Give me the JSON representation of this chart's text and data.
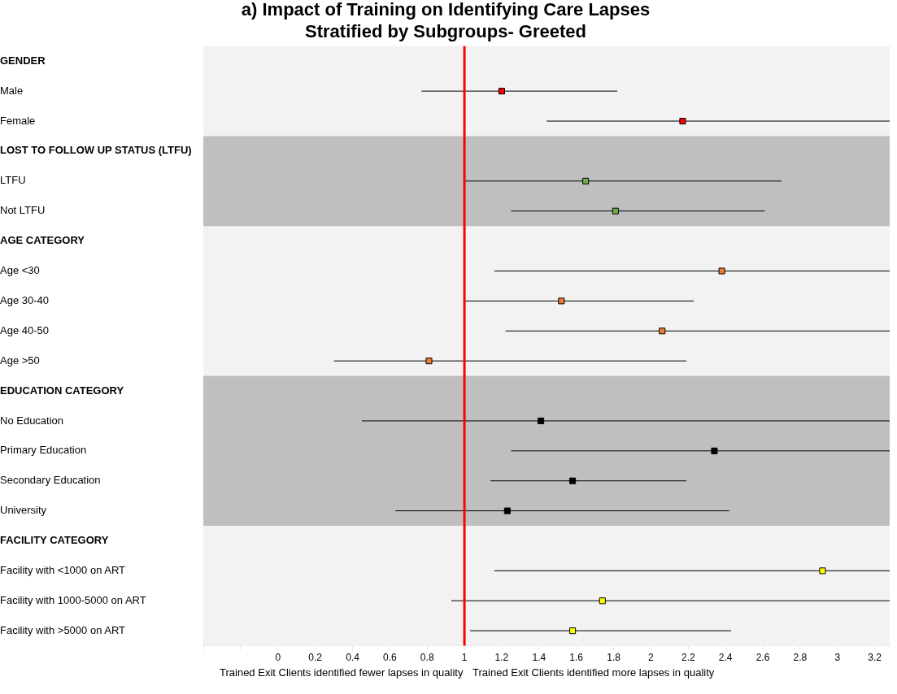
{
  "chart_data": {
    "type": "scatter",
    "orientation": "horizontal",
    "title": "a) Impact of Training on Identifying Care Lapses\nStratified by Subgroups- Greeted",
    "categories": [
      "GENDER",
      "Male",
      "Female",
      "LOST TO FOLLOW UP STATUS (LTFU)",
      "LTFU",
      "Not LTFU",
      "AGE CATEGORY",
      "Age <30",
      "Age 30-40",
      "Age 40-50",
      "Age >50",
      "EDUCATION CATEGORY",
      "No Education",
      "Primary Education",
      "Secondary Education",
      "University",
      "FACILITY CATEGORY",
      "Facility with <1000 on ART",
      "Facility with 1000-5000 on ART",
      "Facility with >5000 on ART"
    ],
    "values": [
      null,
      1.2,
      2.17,
      null,
      1.65,
      1.81,
      null,
      2.38,
      1.52,
      2.06,
      0.81,
      null,
      1.41,
      2.34,
      1.58,
      1.23,
      null,
      2.92,
      1.74,
      1.58
    ],
    "errors": [
      null,
      [
        0.77,
        1.82
      ],
      [
        1.44,
        3.28
      ],
      null,
      [
        1.0,
        2.7
      ],
      [
        1.25,
        2.61
      ],
      null,
      [
        1.16,
        3.28
      ],
      [
        1.0,
        2.23
      ],
      [
        1.22,
        3.28
      ],
      [
        0.3,
        2.19
      ],
      null,
      [
        0.45,
        3.28
      ],
      [
        1.25,
        3.28
      ],
      [
        1.14,
        2.19
      ],
      [
        0.63,
        2.42
      ],
      null,
      [
        1.16,
        3.28
      ],
      [
        0.93,
        3.28
      ],
      [
        1.03,
        2.43
      ]
    ],
    "colors": [
      null,
      "#ff0000",
      "#ff0000",
      null,
      "#70ad47",
      "#70ad47",
      null,
      "#ed7d31",
      "#ed7d31",
      "#ed7d31",
      "#ed7d31",
      null,
      "#000000",
      "#000000",
      "#000000",
      "#000000",
      null,
      "#ffff00",
      "#ffff00",
      "#ffff00"
    ],
    "marker": "square",
    "xlim": [
      -0.4,
      3.28
    ],
    "xticks": [
      {
        "value": -0.4,
        "label": null
      },
      {
        "value": -0.2,
        "label": null
      },
      0,
      0.2,
      0.4,
      0.6,
      0.8,
      1,
      1.2,
      1.4,
      1.6,
      1.8,
      2,
      2.2,
      2.4,
      2.6,
      2.8,
      3,
      3.2
    ],
    "ref_lines": [
      {
        "axis": "x",
        "value": 1,
        "color": "#ff0000"
      }
    ],
    "bands": [
      {
        "axis": "y",
        "from": "LOST TO FOLLOW UP STATUS (LTFU)",
        "to": "Not LTFU",
        "color": "#bfbfbf"
      },
      {
        "axis": "y",
        "from": "EDUCATION CATEGORY",
        "to": "University",
        "color": "#bfbfbf"
      }
    ],
    "annotations": [
      "Trained Exit Clients identified fewer lapses in quality",
      "Trained Exit Clients identified more lapses in quality"
    ]
  }
}
